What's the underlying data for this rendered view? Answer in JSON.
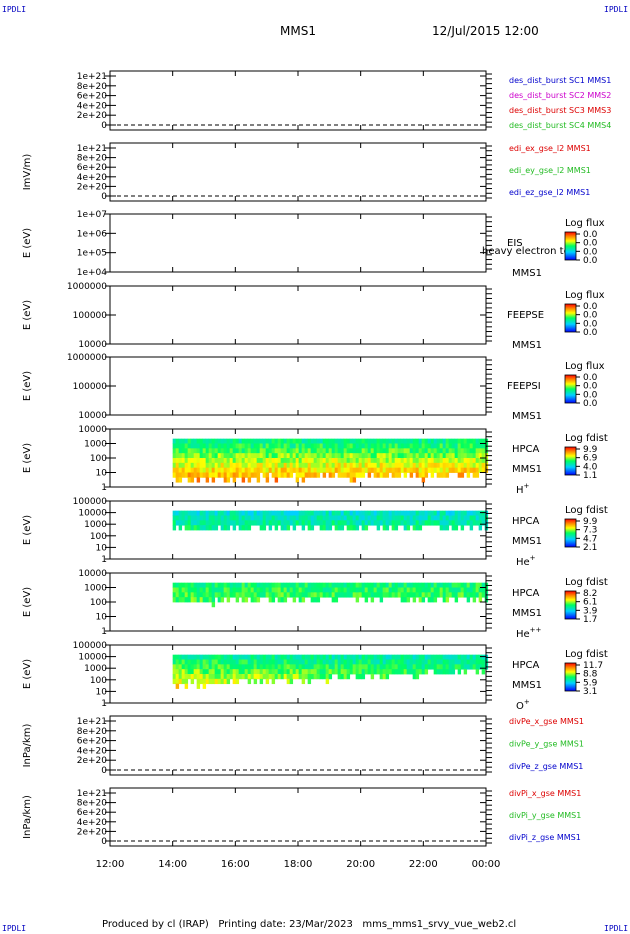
{
  "header": {
    "corner_tl": "IPDLI",
    "corner_tr": "IPDLI",
    "corner_bl": "IPDLI",
    "corner_br": "IPDLI",
    "title": "MMS1",
    "datetime": "12/Jul/2015 12:00"
  },
  "footer": {
    "text": "Produced by cl (IRAP)   Printing date: 23/Mar/2023   mms_mms1_srvy_vue_web2.cl"
  },
  "colors": {
    "blue": "#0000cc",
    "magenta": "#cc00cc",
    "red": "#dd0000",
    "green": "#22bb22"
  },
  "chart_data": {
    "type": "heatmap",
    "x_axis": {
      "range": [
        "12:00",
        "00:00"
      ],
      "tick_labels": [
        "12:00",
        "14:00",
        "16:00",
        "18:00",
        "20:00",
        "22:00",
        "00:00"
      ]
    },
    "panels": [
      {
        "id": "des",
        "type": "line",
        "ylabel": "",
        "ytick_labels": [
          "1e+21",
          "8e+20",
          "6e+20",
          "4e+20",
          "2e+20",
          "0"
        ],
        "ylim": [
          0,
          1e+21
        ],
        "series": [
          {
            "name": "des_dist_burst SC1 MMS1",
            "color": "#0000cc"
          },
          {
            "name": "des_dist_burst SC2 MMS2",
            "color": "#cc00cc"
          },
          {
            "name": "des_dist_burst SC3 MMS3",
            "color": "#dd0000"
          },
          {
            "name": "des_dist_burst SC4 MMS4",
            "color": "#22bb22"
          }
        ]
      },
      {
        "id": "edi",
        "type": "line",
        "ylabel": "ImV/m)",
        "ytick_labels": [
          "1e+21",
          "8e+20",
          "6e+20",
          "4e+20",
          "2e+20",
          "0"
        ],
        "ylim": [
          0,
          1e+21
        ],
        "series": [
          {
            "name": "edi_ex_gse_l2 MMS1",
            "color": "#dd0000"
          },
          {
            "name": "edi_ey_gse_l2 MMS1",
            "color": "#22bb22"
          },
          {
            "name": "edi_ez_gse_l2 MMS1",
            "color": "#0000cc"
          }
        ]
      },
      {
        "id": "eis",
        "type": "heatmap",
        "ylabel": "E (eV)",
        "ytick_labels": [
          "1e+07",
          "1e+06",
          "1e+05",
          "1e+04"
        ],
        "instrument": [
          "EIS",
          "MMS1"
        ],
        "overlay_text": "heavy electron to",
        "colorbar": {
          "label": "Log flux",
          "ticks": [
            "0.0",
            "0.0",
            "0.0",
            "0.0"
          ]
        }
      },
      {
        "id": "feepse",
        "type": "heatmap",
        "ylabel": "E (eV)",
        "ytick_labels": [
          "1000000",
          "100000",
          "10000"
        ],
        "instrument": [
          "FEEPSE",
          "MMS1"
        ],
        "colorbar": {
          "label": "Log flux",
          "ticks": [
            "0.0",
            "0.0",
            "0.0",
            "0.0"
          ]
        }
      },
      {
        "id": "feepsi",
        "type": "heatmap",
        "ylabel": "E (eV)",
        "ytick_labels": [
          "1000000",
          "100000",
          "10000"
        ],
        "instrument": [
          "FEEPSI",
          "MMS1"
        ],
        "colorbar": {
          "label": "Log flux",
          "ticks": [
            "0.0",
            "0.0",
            "0.0",
            "0.0"
          ]
        }
      },
      {
        "id": "hpca-h",
        "type": "heatmap",
        "ylabel": "E (eV)",
        "ytick_labels": [
          "10000",
          "1000",
          "100",
          "10",
          "1"
        ],
        "instrument": [
          "HPCA",
          "MMS1"
        ],
        "species": "H",
        "species_sup": "+",
        "colorbar": {
          "label": "Log fdist",
          "ticks": [
            "9.9",
            "6.9",
            "4.0",
            "1.1"
          ]
        },
        "data_start": "14:00"
      },
      {
        "id": "hpca-he",
        "type": "heatmap",
        "ylabel": "E (eV)",
        "ytick_labels": [
          "100000",
          "10000",
          "1000",
          "100",
          "10",
          "1"
        ],
        "instrument": [
          "HPCA",
          "MMS1"
        ],
        "species": "He",
        "species_sup": "+",
        "colorbar": {
          "label": "Log fdist",
          "ticks": [
            "9.9",
            "7.3",
            "4.7",
            "2.1"
          ]
        },
        "data_start": "14:00"
      },
      {
        "id": "hpca-he2",
        "type": "heatmap",
        "ylabel": "E (eV)",
        "ytick_labels": [
          "10000",
          "1000",
          "100",
          "10",
          "1"
        ],
        "instrument": [
          "HPCA",
          "MMS1"
        ],
        "species": "He",
        "species_sup": "++",
        "colorbar": {
          "label": "Log fdist",
          "ticks": [
            "8.2",
            "6.1",
            "3.9",
            "1.7"
          ]
        },
        "data_start": "14:00"
      },
      {
        "id": "hpca-o",
        "type": "heatmap",
        "ylabel": "E (eV)",
        "ytick_labels": [
          "100000",
          "10000",
          "1000",
          "100",
          "10",
          "1"
        ],
        "instrument": [
          "HPCA",
          "MMS1"
        ],
        "species": "O",
        "species_sup": "+",
        "colorbar": {
          "label": "Log fdist",
          "ticks": [
            "11.7",
            "8.8",
            "5.9",
            "3.1"
          ]
        },
        "data_start": "14:00"
      },
      {
        "id": "divpe",
        "type": "line",
        "ylabel": "InPa/km)",
        "ytick_labels": [
          "1e+21",
          "8e+20",
          "6e+20",
          "4e+20",
          "2e+20",
          "0"
        ],
        "ylim": [
          0,
          1e+21
        ],
        "series": [
          {
            "name": "divPe_x_gse MMS1",
            "color": "#dd0000"
          },
          {
            "name": "divPe_y_gse MMS1",
            "color": "#22bb22"
          },
          {
            "name": "divPe_z_gse MMS1",
            "color": "#0000cc"
          }
        ]
      },
      {
        "id": "divpi",
        "type": "line",
        "ylabel": "InPa/km)",
        "ytick_labels": [
          "1e+21",
          "8e+20",
          "6e+20",
          "4e+20",
          "2e+20",
          "0"
        ],
        "ylim": [
          0,
          1e+21
        ],
        "series": [
          {
            "name": "divPi_x_gse MMS1",
            "color": "#dd0000"
          },
          {
            "name": "divPi_y_gse MMS1",
            "color": "#22bb22"
          },
          {
            "name": "divPi_z_gse MMS1",
            "color": "#0000cc"
          }
        ]
      }
    ]
  }
}
